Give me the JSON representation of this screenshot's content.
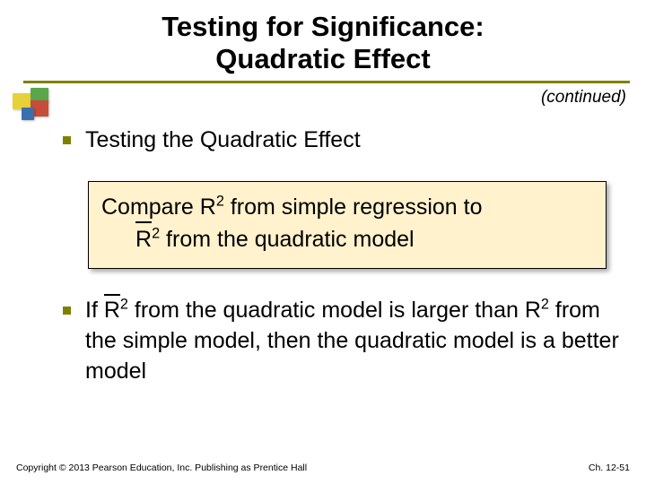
{
  "title_line1": "Testing for Significance:",
  "title_line2": "Quadratic Effect",
  "continued": "(continued)",
  "bullet1": "Testing the Quadratic Effect",
  "box": {
    "line1_a": "Compare  R",
    "line1_b": "  from simple regression to",
    "line2_a": "R",
    "line2_b": "  from the quadratic model"
  },
  "bullet2": {
    "a": "If ",
    "b": "R",
    "c": "  from the quadratic model is larger than R",
    "d": "  from the simple model, then the quadratic model is a better model"
  },
  "footer_left": "Copyright © 2013 Pearson Education, Inc. Publishing as Prentice Hall",
  "footer_right": "Ch. 12-51",
  "colors": {
    "accent": "#808000",
    "box_bg": "#fff2cc",
    "logo_yellow": "#e6d13a",
    "logo_red": "#c84c3a",
    "logo_green": "#5aa64a",
    "logo_blue": "#3a6fb0"
  }
}
